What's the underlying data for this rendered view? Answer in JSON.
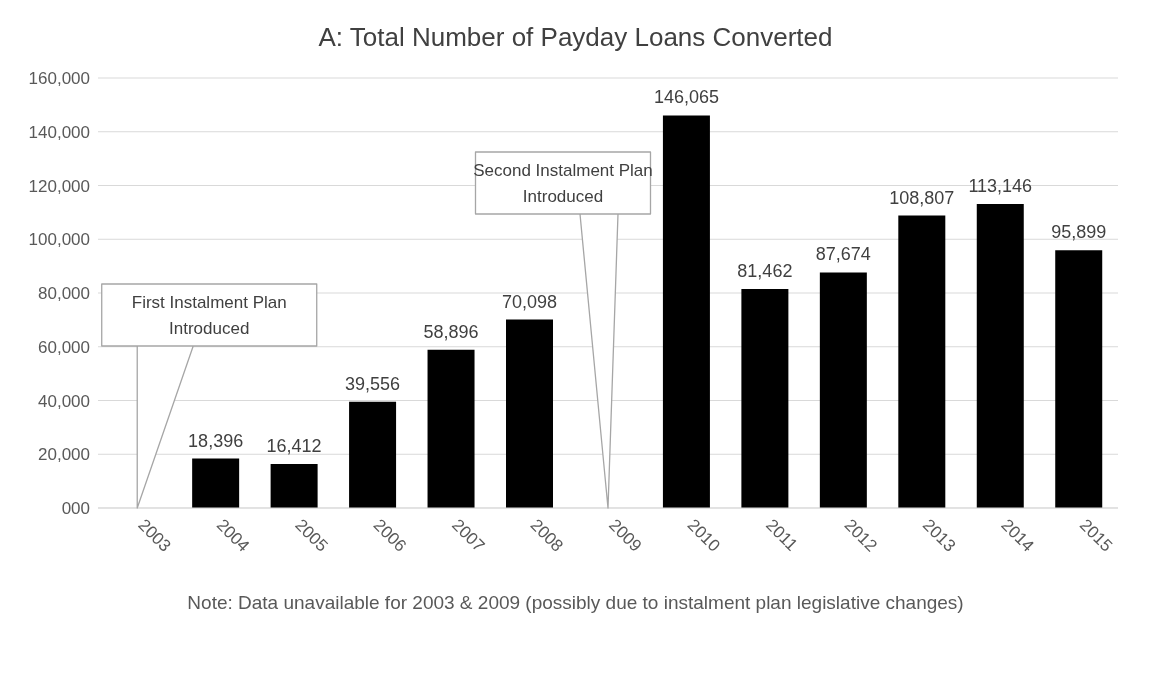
{
  "chart_data": {
    "type": "bar",
    "title": "A: Total Number of Payday Loans Converted",
    "categories": [
      "2003",
      "2004",
      "2005",
      "2006",
      "2007",
      "2008",
      "2009",
      "2010",
      "2011",
      "2012",
      "2013",
      "2014",
      "2015"
    ],
    "values": [
      null,
      18396,
      16412,
      39556,
      58896,
      70098,
      null,
      146065,
      81462,
      87674,
      108807,
      113146,
      95899
    ],
    "color": "#000000",
    "ylim": [
      0,
      160000
    ],
    "yticks": [
      {
        "value": 0,
        "label": "000"
      },
      {
        "value": 20000,
        "label": "20,000"
      },
      {
        "value": 40000,
        "label": "40,000"
      },
      {
        "value": 60000,
        "label": "60,000"
      },
      {
        "value": 80000,
        "label": "80,000"
      },
      {
        "value": 100000,
        "label": "100,000"
      },
      {
        "value": 120000,
        "label": "120,000"
      },
      {
        "value": 140000,
        "label": "140,000"
      },
      {
        "value": 160000,
        "label": "160,000"
      }
    ],
    "grid": "y",
    "value_labels": [
      null,
      "18,396",
      "16,412",
      "39,556",
      "58,896",
      "70,098",
      null,
      "146,065",
      "81,462",
      "87,674",
      "108,807",
      "113,146",
      "95,899"
    ],
    "legend": false,
    "annotations": [
      "First Instalment Plan Introduced",
      "Second Instalment Plan Introduced",
      "Note: Data unavailable for 2003 & 2009 (possibly due to instalment plan legislative changes)"
    ]
  }
}
